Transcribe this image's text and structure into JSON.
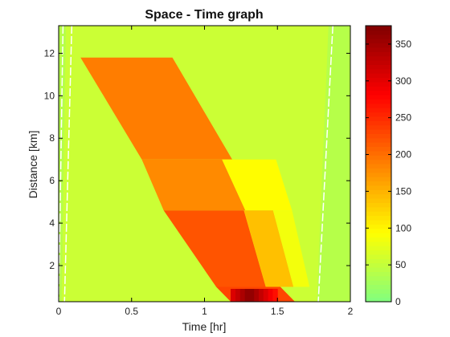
{
  "chart_data": {
    "type": "heatmap",
    "title": "Space - Time graph",
    "xlabel": "Time [hr]",
    "ylabel": "Distance [km]",
    "xlim": [
      0,
      2
    ],
    "ylim": [
      0.3,
      13.3
    ],
    "xticks": [
      0,
      0.5,
      1,
      1.5,
      2
    ],
    "xtick_labels": [
      "0",
      "0.5",
      "1",
      "1.5",
      "2"
    ],
    "yticks": [
      2,
      4,
      6,
      8,
      10,
      12
    ],
    "ytick_labels": [
      "2",
      "4",
      "6",
      "8",
      "10",
      "12"
    ],
    "colorbar": {
      "clim": [
        0,
        375
      ],
      "ticks": [
        0,
        50,
        100,
        150,
        200,
        250,
        300,
        350
      ],
      "tick_labels": [
        "0",
        "50",
        "100",
        "150",
        "200",
        "250",
        "300",
        "350"
      ],
      "colormap": [
        "#80ff80",
        "#ffff00",
        "#ff8000",
        "#ff0000",
        "#800000"
      ]
    },
    "background_value": 55,
    "free_flow_value": 40,
    "regions": [
      {
        "value": 190,
        "top": 11.8,
        "bottom": 7.0,
        "left_at_top": 0.15,
        "left_at_bottom": 0.57,
        "right_at_top": 0.78,
        "right_at_bottom": 1.19
      },
      {
        "value": 180,
        "top": 7.0,
        "bottom": 4.6,
        "left_at_top": 0.57,
        "left_at_bottom": 0.72,
        "right_at_top": 1.12,
        "right_at_bottom": 1.28
      },
      {
        "value": 95,
        "top": 7.0,
        "bottom": 4.6,
        "left_at_top": 1.12,
        "left_at_bottom": 1.28,
        "right_at_top": 1.49,
        "right_at_bottom": 1.6
      },
      {
        "value": 220,
        "top": 4.6,
        "bottom": 1.0,
        "left_at_top": 0.72,
        "left_at_bottom": 1.08,
        "right_at_top": 1.27,
        "right_at_bottom": 1.42
      },
      {
        "value": 140,
        "top": 4.6,
        "bottom": 1.0,
        "left_at_top": 1.27,
        "left_at_bottom": 1.42,
        "right_at_top": 1.47,
        "right_at_bottom": 1.61
      },
      {
        "value": 85,
        "top": 4.6,
        "bottom": 1.0,
        "left_at_top": 1.47,
        "left_at_bottom": 1.61,
        "right_at_top": 1.6,
        "right_at_bottom": 1.72
      },
      {
        "value": 230,
        "top": 1.0,
        "bottom": 0.3,
        "left_at_top": 1.08,
        "left_at_bottom": 1.18,
        "right_at_top": 1.52,
        "right_at_bottom": 1.62
      },
      {
        "value": 370,
        "top": 0.9,
        "bottom": 0.3,
        "left_at_top": 1.18,
        "left_at_bottom": 1.18,
        "right_at_top": 1.5,
        "right_at_bottom": 1.5
      }
    ],
    "free_flow_bands": [
      {
        "top": 13.3,
        "bottom": 0.3,
        "x_top": [
          0,
          0.05
        ],
        "x_bottom": [
          0,
          0.02
        ]
      },
      {
        "top": 13.3,
        "bottom": 0.3,
        "x_top": [
          1.85,
          2
        ],
        "x_bottom": [
          1.77,
          2
        ]
      }
    ],
    "trajectories": [
      {
        "x_top": 0.03,
        "x_bottom": 0.0
      },
      {
        "x_top": 0.09,
        "x_bottom": 0.04
      },
      {
        "x_top": 1.88,
        "x_bottom": 1.78
      }
    ]
  }
}
